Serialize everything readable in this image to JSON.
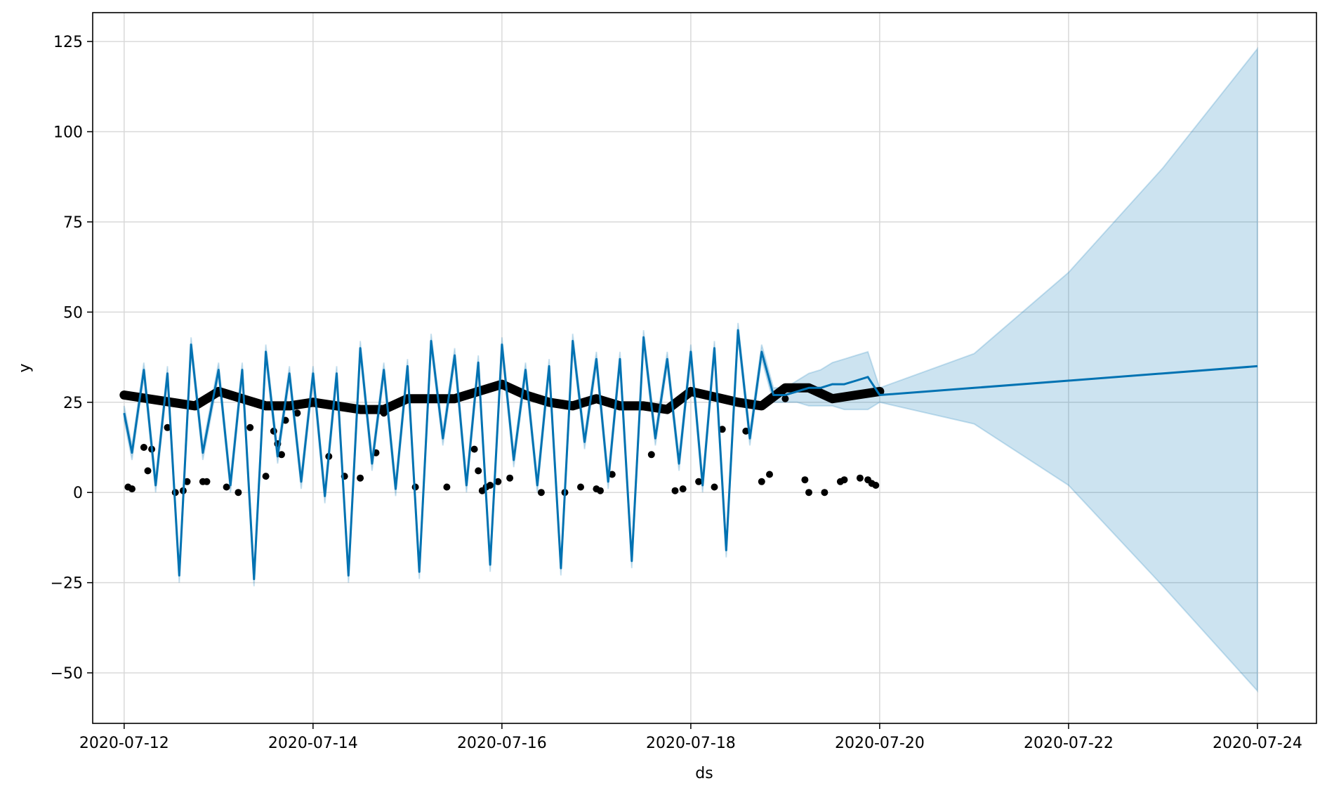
{
  "chart_data": {
    "type": "line",
    "title": "",
    "xlabel": "ds",
    "ylabel": "y",
    "x_axis_kind": "date",
    "xlim": [
      "2020-07-11T16:00:00",
      "2020-07-24T15:00:00"
    ],
    "ylim": [
      -64,
      133
    ],
    "x_ticks": [
      "2020-07-12",
      "2020-07-14",
      "2020-07-16",
      "2020-07-18",
      "2020-07-20",
      "2020-07-22",
      "2020-07-24"
    ],
    "y_ticks": [
      -50,
      -25,
      0,
      25,
      50,
      75,
      100,
      125
    ],
    "y_tick_labels": [
      "−50",
      "−25",
      "0",
      "25",
      "50",
      "75",
      "100",
      "125"
    ],
    "grid": true,
    "legend": "none",
    "colors": {
      "forecast_line": "#0072B2",
      "uncertainty_fill": "#0072B2",
      "observed_points": "#000000",
      "grid": "#d9d9d9"
    },
    "series": [
      {
        "kind": "forecast",
        "x": [
          "2020-07-12T00:00",
          "2020-07-12T02:00",
          "2020-07-12T05:00",
          "2020-07-12T08:00",
          "2020-07-12T11:00",
          "2020-07-12T14:00",
          "2020-07-12T17:00",
          "2020-07-12T20:00",
          "2020-07-13T00:00",
          "2020-07-13T03:00",
          "2020-07-13T06:00",
          "2020-07-13T09:00",
          "2020-07-13T12:00",
          "2020-07-13T15:00",
          "2020-07-13T18:00",
          "2020-07-13T21:00",
          "2020-07-14T00:00",
          "2020-07-14T03:00",
          "2020-07-14T06:00",
          "2020-07-14T09:00",
          "2020-07-14T12:00",
          "2020-07-14T15:00",
          "2020-07-14T18:00",
          "2020-07-14T21:00",
          "2020-07-15T00:00",
          "2020-07-15T03:00",
          "2020-07-15T06:00",
          "2020-07-15T09:00",
          "2020-07-15T12:00",
          "2020-07-15T15:00",
          "2020-07-15T18:00",
          "2020-07-15T21:00",
          "2020-07-16T00:00",
          "2020-07-16T03:00",
          "2020-07-16T06:00",
          "2020-07-16T09:00",
          "2020-07-16T12:00",
          "2020-07-16T15:00",
          "2020-07-16T18:00",
          "2020-07-16T21:00",
          "2020-07-17T00:00",
          "2020-07-17T03:00",
          "2020-07-17T06:00",
          "2020-07-17T09:00",
          "2020-07-17T12:00",
          "2020-07-17T15:00",
          "2020-07-17T18:00",
          "2020-07-17T21:00",
          "2020-07-18T00:00",
          "2020-07-18T03:00",
          "2020-07-18T06:00",
          "2020-07-18T09:00",
          "2020-07-18T12:00",
          "2020-07-18T15:00",
          "2020-07-18T18:00",
          "2020-07-18T21:00",
          "2020-07-19T00:00",
          "2020-07-19T03:00",
          "2020-07-19T06:00",
          "2020-07-19T09:00",
          "2020-07-19T12:00",
          "2020-07-19T15:00",
          "2020-07-19T18:00",
          "2020-07-19T21:00",
          "2020-07-20T00:00",
          "2020-07-21T00:00",
          "2020-07-22T00:00",
          "2020-07-23T00:00",
          "2020-07-24T00:00"
        ],
        "yhat": [
          22,
          11,
          34,
          2,
          33,
          -23,
          41,
          11,
          34,
          2,
          34,
          -24,
          39,
          10,
          33,
          3,
          33,
          -1,
          33,
          -23,
          40,
          8,
          34,
          1,
          35,
          -22,
          42,
          15,
          38,
          2,
          36,
          -20,
          41,
          9,
          34,
          2,
          35,
          -21,
          42,
          14,
          37,
          3,
          37,
          -19,
          43,
          15,
          37,
          8,
          39,
          2,
          40,
          -16,
          45,
          15,
          39,
          27,
          27,
          28,
          29,
          29,
          30,
          30,
          31,
          32,
          27,
          29,
          31,
          33,
          35
        ],
        "yhat_upper": [
          24,
          13,
          36,
          4,
          35,
          -21,
          43,
          13,
          36,
          4,
          36,
          -22,
          41,
          12,
          35,
          5,
          35,
          1,
          35,
          -21,
          42,
          10,
          36,
          3,
          37,
          -20,
          44,
          17,
          40,
          4,
          38,
          -18,
          43,
          11,
          36,
          4,
          37,
          -19,
          44,
          16,
          39,
          5,
          39,
          -17,
          45,
          17,
          39,
          10,
          41,
          4,
          42,
          -14,
          47,
          17,
          41,
          29,
          29,
          31,
          33,
          34,
          36,
          37,
          38,
          39,
          29,
          38.5,
          61,
          90,
          123
        ],
        "yhat_lower": [
          20,
          9,
          32,
          0,
          31,
          -25,
          39,
          9,
          32,
          0,
          32,
          -26,
          37,
          8,
          31,
          1,
          31,
          -3,
          31,
          -25,
          38,
          6,
          32,
          -1,
          33,
          -24,
          40,
          13,
          36,
          0,
          34,
          -22,
          39,
          7,
          32,
          0,
          33,
          -23,
          40,
          12,
          35,
          1,
          35,
          -21,
          41,
          13,
          35,
          6,
          37,
          0,
          38,
          -18,
          43,
          13,
          37,
          25,
          25,
          25,
          24,
          24,
          24,
          23,
          23,
          23,
          25,
          19,
          2,
          -26,
          -55
        ]
      },
      {
        "kind": "observed",
        "baseline_x": [
          "2020-07-12T00:00",
          "2020-07-12T12:00",
          "2020-07-12T18:00",
          "2020-07-13T00:00",
          "2020-07-13T06:00",
          "2020-07-13T12:00",
          "2020-07-13T18:00",
          "2020-07-14T00:00",
          "2020-07-14T12:00",
          "2020-07-14T18:00",
          "2020-07-15T00:00",
          "2020-07-15T12:00",
          "2020-07-16T00:00",
          "2020-07-16T06:00",
          "2020-07-16T12:00",
          "2020-07-16T18:00",
          "2020-07-17T00:00",
          "2020-07-17T06:00",
          "2020-07-17T12:00",
          "2020-07-17T18:00",
          "2020-07-18T00:00",
          "2020-07-18T12:00",
          "2020-07-18T18:00",
          "2020-07-19T00:00",
          "2020-07-19T06:00",
          "2020-07-19T12:00",
          "2020-07-19T18:00",
          "2020-07-20T00:00"
        ],
        "baseline_y": [
          27,
          25,
          24,
          28,
          26,
          24,
          24,
          25,
          23,
          23,
          26,
          26,
          30,
          27,
          25,
          24,
          26,
          24,
          24,
          23,
          28,
          25,
          24,
          29,
          29,
          26,
          27,
          28
        ],
        "points_x": [
          "2020-07-12T01:00",
          "2020-07-12T02:00",
          "2020-07-12T05:00",
          "2020-07-12T06:00",
          "2020-07-12T07:00",
          "2020-07-12T11:00",
          "2020-07-12T13:00",
          "2020-07-12T15:00",
          "2020-07-12T16:00",
          "2020-07-12T20:00",
          "2020-07-12T21:00",
          "2020-07-13T02:00",
          "2020-07-13T05:00",
          "2020-07-13T08:00",
          "2020-07-13T12:00",
          "2020-07-13T14:00",
          "2020-07-13T15:00",
          "2020-07-13T16:00",
          "2020-07-13T17:00",
          "2020-07-13T20:00",
          "2020-07-14T04:00",
          "2020-07-14T08:00",
          "2020-07-14T12:00",
          "2020-07-14T16:00",
          "2020-07-14T18:00",
          "2020-07-15T02:00",
          "2020-07-15T10:00",
          "2020-07-15T17:00",
          "2020-07-15T18:00",
          "2020-07-15T19:00",
          "2020-07-15T20:00",
          "2020-07-15T21:00",
          "2020-07-15T23:00",
          "2020-07-16T02:00",
          "2020-07-16T10:00",
          "2020-07-16T16:00",
          "2020-07-16T20:00",
          "2020-07-17T00:00",
          "2020-07-17T01:00",
          "2020-07-17T04:00",
          "2020-07-17T14:00",
          "2020-07-17T20:00",
          "2020-07-17T22:00",
          "2020-07-18T02:00",
          "2020-07-18T06:00",
          "2020-07-18T08:00",
          "2020-07-18T14:00",
          "2020-07-18T18:00",
          "2020-07-18T20:00",
          "2020-07-19T00:00",
          "2020-07-19T05:00",
          "2020-07-19T06:00",
          "2020-07-19T10:00",
          "2020-07-19T14:00",
          "2020-07-19T15:00",
          "2020-07-19T19:00",
          "2020-07-19T21:00",
          "2020-07-19T22:00",
          "2020-07-19T23:00"
        ],
        "points_y": [
          1.5,
          1,
          12.5,
          6,
          12,
          18,
          0,
          0.5,
          3,
          3,
          3,
          1.5,
          0,
          18,
          4.5,
          17,
          13.5,
          10.5,
          20,
          22,
          10,
          4.5,
          4,
          11,
          22,
          1.5,
          1.5,
          12,
          6,
          0.5,
          1.5,
          2,
          3,
          4,
          0,
          0,
          1.5,
          1,
          0.5,
          5,
          10.5,
          0.5,
          1,
          3,
          1.5,
          17.5,
          17,
          3,
          5,
          26,
          3.5,
          0,
          0,
          3,
          3.5,
          4,
          3.5,
          2.5,
          2
        ]
      }
    ]
  }
}
